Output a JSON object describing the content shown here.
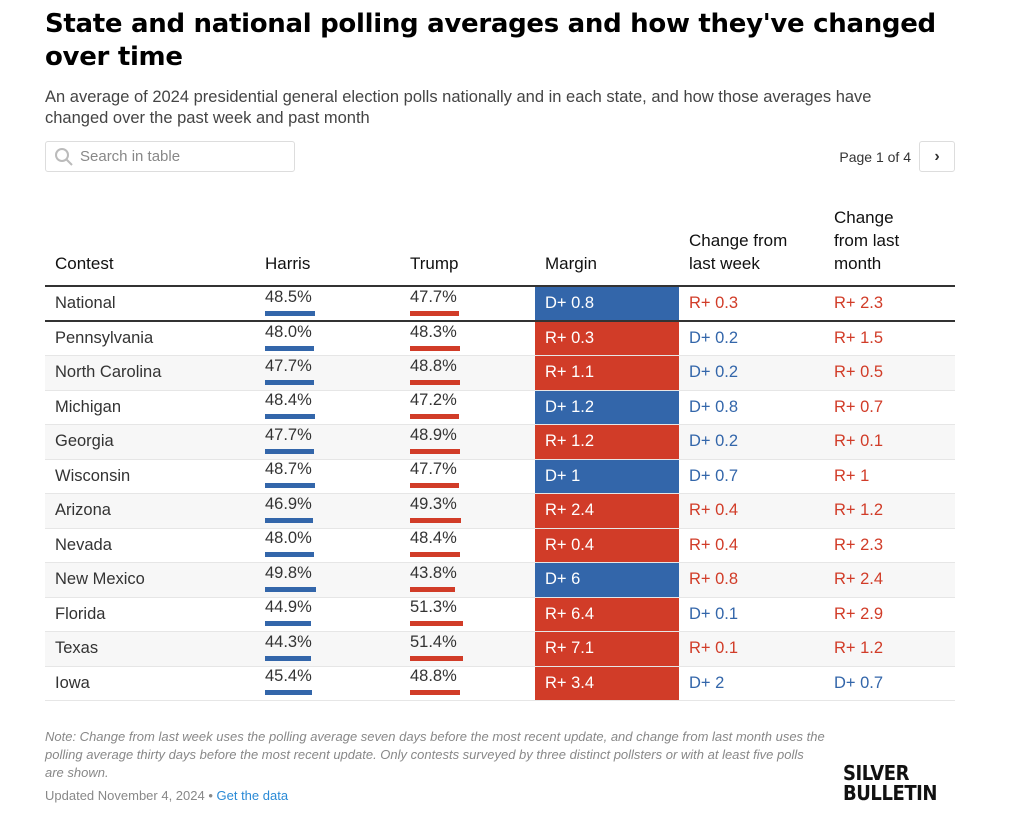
{
  "title": "State and national polling averages and how they've changed over time",
  "subtitle": "An average of 2024 presidential general election polls nationally and in each state, and how those averages have changed over the past week and past month",
  "search": {
    "placeholder": "Search in table"
  },
  "pager": {
    "label": "Page 1 of 4"
  },
  "colors": {
    "dem": "#3366aa",
    "rep": "#d13c28"
  },
  "headers": {
    "contest": "Contest",
    "harris": "Harris",
    "trump": "Trump",
    "margin": "Margin",
    "week": "Change from last week",
    "month": "Change from last month"
  },
  "rows": [
    {
      "contest": "National",
      "harris": "48.5%",
      "trump": "47.7%",
      "margin": "D+ 0.8",
      "week": "R+ 0.3",
      "month": "R+ 2.3"
    },
    {
      "contest": "Pennsylvania",
      "harris": "48.0%",
      "trump": "48.3%",
      "margin": "R+ 0.3",
      "week": "D+ 0.2",
      "month": "R+ 1.5"
    },
    {
      "contest": "North Carolina",
      "harris": "47.7%",
      "trump": "48.8%",
      "margin": "R+ 1.1",
      "week": "D+ 0.2",
      "month": "R+ 0.5"
    },
    {
      "contest": "Michigan",
      "harris": "48.4%",
      "trump": "47.2%",
      "margin": "D+ 1.2",
      "week": "D+ 0.8",
      "month": "R+ 0.7"
    },
    {
      "contest": "Georgia",
      "harris": "47.7%",
      "trump": "48.9%",
      "margin": "R+ 1.2",
      "week": "D+ 0.2",
      "month": "R+ 0.1"
    },
    {
      "contest": "Wisconsin",
      "harris": "48.7%",
      "trump": "47.7%",
      "margin": "D+ 1",
      "week": "D+ 0.7",
      "month": "R+ 1"
    },
    {
      "contest": "Arizona",
      "harris": "46.9%",
      "trump": "49.3%",
      "margin": "R+ 2.4",
      "week": "R+ 0.4",
      "month": "R+ 1.2"
    },
    {
      "contest": "Nevada",
      "harris": "48.0%",
      "trump": "48.4%",
      "margin": "R+ 0.4",
      "week": "R+ 0.4",
      "month": "R+ 2.3"
    },
    {
      "contest": "New Mexico",
      "harris": "49.8%",
      "trump": "43.8%",
      "margin": "D+ 6",
      "week": "R+ 0.8",
      "month": "R+ 2.4"
    },
    {
      "contest": "Florida",
      "harris": "44.9%",
      "trump": "51.3%",
      "margin": "R+ 6.4",
      "week": "D+ 0.1",
      "month": "R+ 2.9"
    },
    {
      "contest": "Texas",
      "harris": "44.3%",
      "trump": "51.4%",
      "margin": "R+ 7.1",
      "week": "R+ 0.1",
      "month": "R+ 1.2"
    },
    {
      "contest": "Iowa",
      "harris": "45.4%",
      "trump": "48.8%",
      "margin": "R+ 3.4",
      "week": "D+ 2",
      "month": "D+ 0.7"
    }
  ],
  "note": "Note: Change from last week uses the polling average seven days before the most recent update, and change from last month uses the polling average thirty days before the most recent update. Only contests surveyed by three distinct pollsters or with at least five polls are shown.",
  "updated": "Updated November 4, 2024 • ",
  "get_data": "Get the data",
  "logo": "SILVER BULLETIN"
}
